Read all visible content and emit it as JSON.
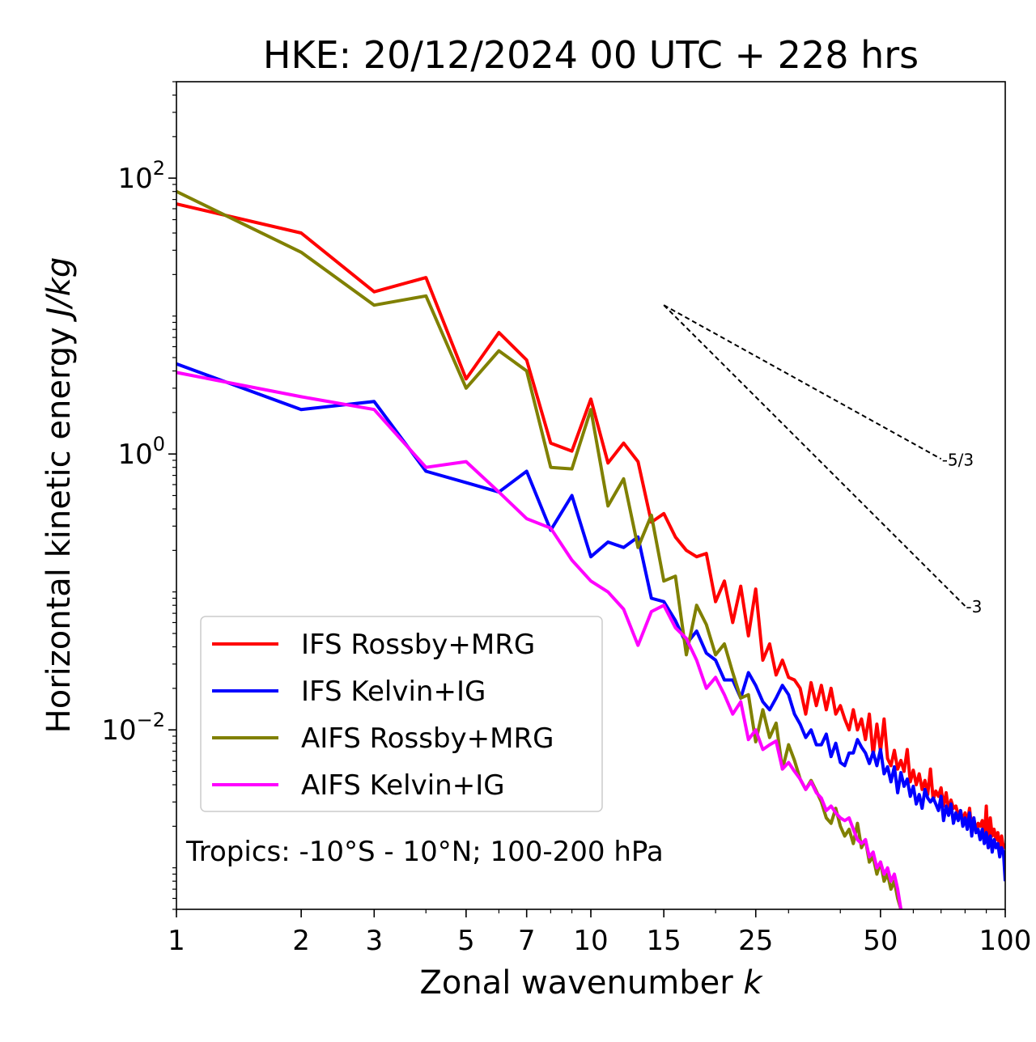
{
  "chart_data": {
    "type": "line",
    "title": "HKE: 20/12/2024 00 UTC + 228 hrs",
    "xlabel": "Zonal wavenumber k",
    "xlabel_main": "Zonal wavenumber ",
    "xlabel_var": "k",
    "ylabel": "Horizontal kinetic energy J/kg",
    "ylabel_main": "Horizontal kinetic energy ",
    "ylabel_unit": "J/kg",
    "x_scale": "log",
    "y_scale": "log",
    "xlim": [
      1,
      100
    ],
    "ylim": [
      0.0005,
      500
    ],
    "x_ticks": [
      1,
      2,
      3,
      5,
      7,
      10,
      15,
      25,
      50,
      100
    ],
    "x_tick_labels": [
      "1",
      "2",
      "3",
      "5",
      "7",
      "10",
      "15",
      "25",
      "50",
      "100"
    ],
    "y_ticks": [
      0.01,
      1,
      100
    ],
    "y_tick_labels": [
      {
        "base": "10",
        "exp": "−2"
      },
      {
        "base": "10",
        "exp": "0"
      },
      {
        "base": "10",
        "exp": "2"
      }
    ],
    "grid": false,
    "legend_position": "lower-left",
    "annotation": "Tropics: -10°S - 10°N; 100-200 hPa",
    "reference_slopes": [
      {
        "label": "-5/3",
        "slope": -1.6667,
        "k0": 15,
        "E0": 12,
        "k1": 70
      },
      {
        "label": "-3",
        "slope": -3,
        "k0": 15,
        "E0": 12,
        "k1": 80
      }
    ],
    "series": [
      {
        "name": "IFS Rossby+MRG",
        "color": "#ff0000",
        "x": [
          1,
          2,
          3,
          4,
          5,
          6,
          7,
          8,
          9,
          10,
          11,
          12,
          13,
          14,
          15,
          16,
          17,
          18,
          19,
          20,
          21,
          22,
          23,
          24,
          25,
          26,
          27,
          28,
          29,
          30,
          31,
          32,
          33,
          34,
          35,
          36,
          37,
          38,
          39,
          40,
          41,
          42,
          43,
          44,
          45,
          46,
          47,
          48,
          49,
          50,
          51,
          52,
          53,
          54,
          55,
          56,
          57,
          58,
          59,
          60,
          61,
          62,
          63,
          64,
          65,
          66,
          67,
          68,
          69,
          70,
          71,
          72,
          73,
          74,
          75,
          76,
          77,
          78,
          79,
          80,
          81,
          82,
          83,
          84,
          85,
          86,
          87,
          88,
          89,
          90,
          91,
          92,
          93,
          94,
          95,
          96,
          97,
          98,
          99,
          100
        ],
        "y": [
          65,
          40,
          15,
          19,
          3.5,
          7.6,
          4.8,
          1.2,
          1.05,
          2.5,
          0.86,
          1.2,
          0.88,
          0.32,
          0.37,
          0.25,
          0.2,
          0.18,
          0.19,
          0.085,
          0.12,
          0.06,
          0.11,
          0.048,
          0.105,
          0.032,
          0.042,
          0.025,
          0.032,
          0.024,
          0.023,
          0.02,
          0.013,
          0.022,
          0.015,
          0.021,
          0.014,
          0.02,
          0.013,
          0.015,
          0.012,
          0.01,
          0.014,
          0.01,
          0.012,
          0.0085,
          0.013,
          0.0065,
          0.011,
          0.007,
          0.012,
          0.0062,
          0.0055,
          0.0071,
          0.0052,
          0.006,
          0.005,
          0.0072,
          0.0042,
          0.0051,
          0.004,
          0.0048,
          0.0037,
          0.0043,
          0.0034,
          0.0052,
          0.0031,
          0.0036,
          0.0033,
          0.0038,
          0.0028,
          0.0035,
          0.0026,
          0.0031,
          0.0027,
          0.0028,
          0.0024,
          0.0026,
          0.0022,
          0.0025,
          0.0021,
          0.0027,
          0.0019,
          0.0023,
          0.0018,
          0.0021,
          0.002,
          0.0022,
          0.0016,
          0.0028,
          0.0014,
          0.0023,
          0.0017,
          0.0019,
          0.0016,
          0.0018,
          0.0013,
          0.0017,
          0.0014,
          0.0015
        ]
      },
      {
        "name": "IFS Kelvin+IG",
        "color": "#0000ff",
        "x": [
          1,
          2,
          3,
          4,
          5,
          6,
          7,
          8,
          9,
          10,
          11,
          12,
          13,
          14,
          15,
          16,
          17,
          18,
          19,
          20,
          21,
          22,
          23,
          24,
          25,
          26,
          27,
          28,
          29,
          30,
          31,
          32,
          33,
          34,
          35,
          36,
          37,
          38,
          39,
          40,
          41,
          42,
          43,
          44,
          45,
          46,
          47,
          48,
          49,
          50,
          51,
          52,
          53,
          54,
          55,
          56,
          57,
          58,
          59,
          60,
          61,
          62,
          63,
          64,
          65,
          66,
          67,
          68,
          69,
          70,
          71,
          72,
          73,
          74,
          75,
          76,
          77,
          78,
          79,
          80,
          81,
          82,
          83,
          84,
          85,
          86,
          87,
          88,
          89,
          90,
          91,
          92,
          93,
          94,
          95,
          96,
          97,
          98,
          99,
          100
        ],
        "y": [
          4.5,
          2.1,
          2.4,
          0.75,
          0.62,
          0.53,
          0.75,
          0.28,
          0.5,
          0.18,
          0.23,
          0.21,
          0.25,
          0.09,
          0.085,
          0.062,
          0.042,
          0.052,
          0.036,
          0.032,
          0.023,
          0.023,
          0.017,
          0.026,
          0.021,
          0.016,
          0.014,
          0.017,
          0.021,
          0.018,
          0.013,
          0.011,
          0.0088,
          0.01,
          0.0078,
          0.0078,
          0.0093,
          0.0064,
          0.008,
          0.0058,
          0.0055,
          0.0068,
          0.0068,
          0.0085,
          0.0075,
          0.0068,
          0.0057,
          0.0069,
          0.0055,
          0.0072,
          0.0048,
          0.0054,
          0.0042,
          0.0054,
          0.0035,
          0.0049,
          0.0039,
          0.0044,
          0.0033,
          0.0039,
          0.0029,
          0.0034,
          0.0027,
          0.0037,
          0.0032,
          0.003,
          0.0032,
          0.0029,
          0.0026,
          0.0033,
          0.0022,
          0.0028,
          0.0024,
          0.0029,
          0.0021,
          0.0025,
          0.0022,
          0.0026,
          0.002,
          0.0023,
          0.0019,
          0.0025,
          0.0017,
          0.0023,
          0.0018,
          0.0019,
          0.0016,
          0.0019,
          0.0015,
          0.0018,
          0.0014,
          0.0017,
          0.0013,
          0.0016,
          0.0014,
          0.0015,
          0.0012,
          0.0014,
          0.0013,
          0.0008
        ]
      },
      {
        "name": "AIFS Rossby+MRG",
        "color": "#808000",
        "x": [
          1,
          2,
          3,
          4,
          5,
          6,
          7,
          8,
          9,
          10,
          11,
          12,
          13,
          14,
          15,
          16,
          17,
          18,
          19,
          20,
          21,
          22,
          23,
          24,
          25,
          26,
          27,
          28,
          29,
          30,
          31,
          32,
          33,
          34,
          35,
          36,
          37,
          38,
          39,
          40,
          41,
          42,
          43,
          44,
          45,
          46,
          47,
          48,
          49,
          50,
          51,
          52,
          53,
          54,
          55,
          56
        ],
        "y": [
          80,
          29,
          12,
          14,
          3,
          5.6,
          4,
          0.8,
          0.78,
          2.1,
          0.42,
          0.66,
          0.21,
          0.36,
          0.12,
          0.13,
          0.035,
          0.08,
          0.058,
          0.035,
          0.042,
          0.026,
          0.017,
          0.018,
          0.0082,
          0.014,
          0.0088,
          0.0112,
          0.0052,
          0.0078,
          0.006,
          0.0044,
          0.0037,
          0.0043,
          0.0036,
          0.003,
          0.0023,
          0.0021,
          0.0027,
          0.002,
          0.0017,
          0.0019,
          0.0015,
          0.0021,
          0.0014,
          0.0016,
          0.0011,
          0.0012,
          0.0009,
          0.0011,
          0.0008,
          0.0009,
          0.0007,
          0.0008,
          0.0006,
          0.0005
        ]
      },
      {
        "name": "AIFS Kelvin+IG",
        "color": "#ff00ff",
        "x": [
          1,
          2,
          3,
          4,
          5,
          6,
          7,
          8,
          9,
          10,
          11,
          12,
          13,
          14,
          15,
          16,
          17,
          18,
          19,
          20,
          21,
          22,
          23,
          24,
          25,
          26,
          27,
          28,
          29,
          30,
          31,
          32,
          33,
          34,
          35,
          36,
          37,
          38,
          39,
          40,
          41,
          42,
          43,
          44,
          45,
          46,
          47,
          48,
          49,
          50,
          51,
          52,
          53,
          54,
          55,
          56
        ],
        "y": [
          3.9,
          2.6,
          2.1,
          0.8,
          0.88,
          0.53,
          0.34,
          0.29,
          0.17,
          0.12,
          0.1,
          0.075,
          0.041,
          0.072,
          0.08,
          0.055,
          0.046,
          0.032,
          0.02,
          0.024,
          0.018,
          0.013,
          0.016,
          0.0085,
          0.01,
          0.0072,
          0.0078,
          0.0083,
          0.0052,
          0.0058,
          0.005,
          0.0044,
          0.0037,
          0.0042,
          0.0035,
          0.0032,
          0.0026,
          0.0028,
          0.0025,
          0.0023,
          0.0022,
          0.0023,
          0.0019,
          0.0016,
          0.0015,
          0.0016,
          0.0012,
          0.0013,
          0.001,
          0.0011,
          0.0009,
          0.001,
          0.0008,
          0.0009,
          0.0007,
          0.0005
        ]
      }
    ]
  }
}
